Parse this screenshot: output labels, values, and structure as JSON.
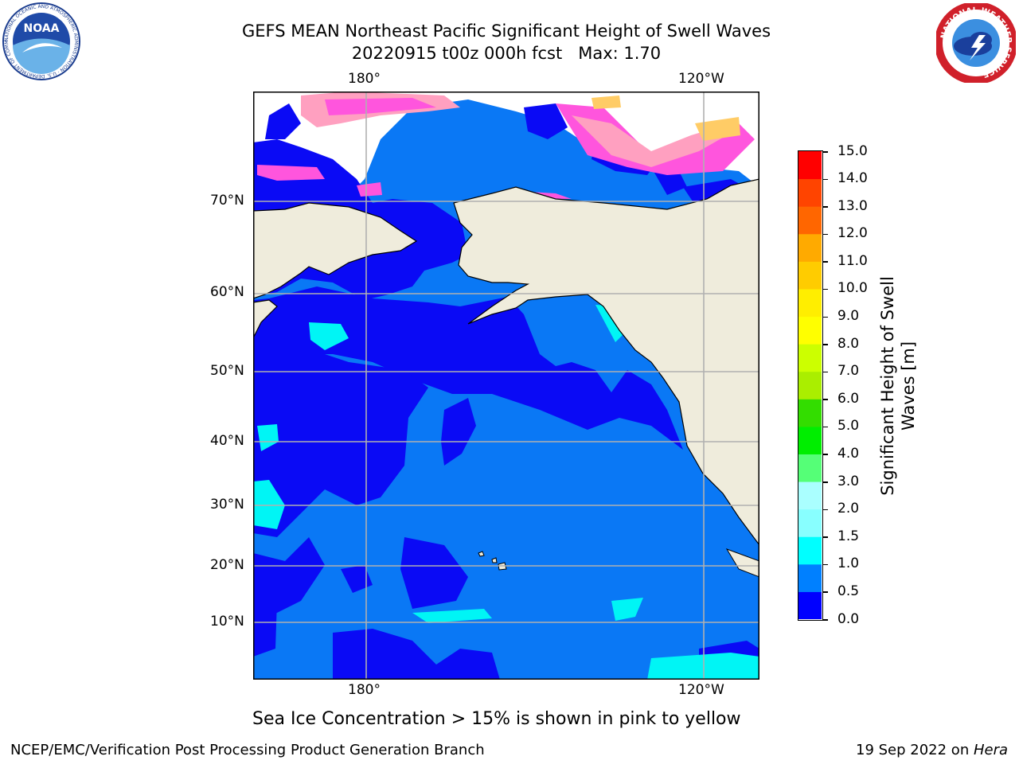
{
  "title": {
    "line1": "GEFS MEAN Northeast Pacific Significant Height of Swell Waves",
    "line2": "20220915 t00z 000h fcst   Max: 1.70"
  },
  "map": {
    "lon_ticks_top": [
      "180°",
      "120°W"
    ],
    "lon_ticks_bottom": [
      "180°",
      "120°W"
    ],
    "lat_ticks": [
      "70°N",
      "60°N",
      "50°N",
      "40°N",
      "30°N",
      "20°N",
      "10°N"
    ],
    "land_color": "#efecdc",
    "ocean_low_color": "#0a0af5",
    "ocean_mid_color": "#0a78f5",
    "ocean_high_color": "#00f5f5",
    "ice_colors": [
      "#ff55dd",
      "#ffa0c0",
      "#ffcc66",
      "#ffe080"
    ]
  },
  "colorbar": {
    "label_line1": "Significant Height of Swell",
    "label_line2": "Waves [m]",
    "ticks": [
      "15.0",
      "14.0",
      "13.0",
      "12.0",
      "11.0",
      "10.0",
      "9.0",
      "8.0",
      "7.0",
      "6.0",
      "5.0",
      "4.0",
      "3.0",
      "2.0",
      "1.5",
      "1.0",
      "0.5",
      "0.0"
    ],
    "colors_bottom_to_top": [
      "#0000ff",
      "#0080ff",
      "#00ffff",
      "#44ffff",
      "#88ffff",
      "#aaffff",
      "#55ff77",
      "#00ee00",
      "#33dd00",
      "#77ee00",
      "#aaee00",
      "#ccff00",
      "#ffff00",
      "#ffee00",
      "#ffcc00",
      "#ffaa00",
      "#ff8800",
      "#ff6600",
      "#ff4400",
      "#ff0000"
    ]
  },
  "caption": "Sea Ice Concentration > 15% is shown in pink to yellow",
  "footer": {
    "left": "NCEP/EMC/Verification Post Processing Product Generation Branch",
    "right_date": "19 Sep 2022 on ",
    "right_host": "Hera"
  },
  "logos": {
    "noaa_text": "NOAA",
    "noaa_ring": "NATIONAL OCEANIC AND ATMOSPHERIC ADMINISTRATION · U.S. DEPARTMENT OF COMMERCE",
    "nws_ring": "NATIONAL WEATHER SERVICE"
  }
}
